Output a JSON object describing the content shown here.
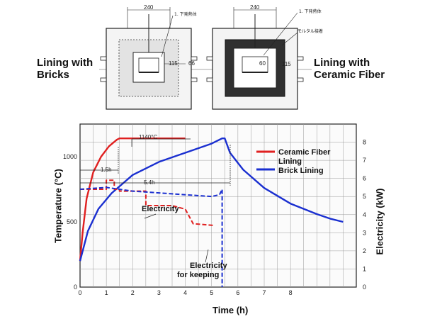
{
  "diagrams": {
    "left_label": "Lining with Bricks",
    "right_label": "Lining with Ceramic Fiber",
    "width_dim": "240",
    "left_callout": "1. 下発熱体",
    "right_callout_1": "1. 下発熱体",
    "right_callout_2": "モルタル接着",
    "left_dim_a": "115",
    "left_dim_b": "66",
    "right_dim_a": "60",
    "right_dim_b": "115"
  },
  "chart_data": {
    "type": "line",
    "xlabel": "Time (h)",
    "ylabel_left": "Temperature (°C)",
    "ylabel_right": "Electricity (kW)",
    "xlim": [
      0,
      10.5
    ],
    "ylim_left": [
      0,
      1250
    ],
    "ylim_right": [
      0,
      9
    ],
    "x_ticks": [
      "0",
      "1",
      "2",
      "3",
      "4",
      "5",
      "6",
      "7",
      "8"
    ],
    "y_ticks_left": [
      "0",
      "500",
      "1000"
    ],
    "y_ticks_right": [
      "0",
      "1",
      "2",
      "3",
      "4",
      "5",
      "6",
      "7",
      "8"
    ],
    "grid": true,
    "legend_position": "top-right",
    "legend": [
      "Ceramic Fiber Lining",
      "Brick Lining"
    ],
    "colors": {
      "ceramic": "#e02020",
      "brick": "#1a2fd0",
      "frame": "#222222"
    },
    "annotations": {
      "peak": "1140°C",
      "t_ceramic": "1.5h",
      "t_brick": "5.4h",
      "electricity": "Electricity",
      "electricity_keeping": "Electricity for keeping"
    },
    "series": [
      {
        "name": "Ceramic Fiber Lining",
        "axis": "temperature",
        "points": [
          [
            0,
            200
          ],
          [
            0.1,
            420
          ],
          [
            0.25,
            680
          ],
          [
            0.5,
            880
          ],
          [
            0.8,
            1000
          ],
          [
            1.1,
            1080
          ],
          [
            1.4,
            1130
          ],
          [
            1.5,
            1140
          ],
          [
            4.0,
            1140
          ]
        ]
      },
      {
        "name": "Brick Lining",
        "axis": "temperature",
        "points": [
          [
            0,
            200
          ],
          [
            0.3,
            430
          ],
          [
            0.7,
            600
          ],
          [
            1.2,
            720
          ],
          [
            2.0,
            860
          ],
          [
            3.0,
            960
          ],
          [
            4.0,
            1030
          ],
          [
            5.0,
            1100
          ],
          [
            5.4,
            1140
          ],
          [
            5.5,
            1140
          ],
          [
            5.7,
            1030
          ],
          [
            6.2,
            900
          ],
          [
            7.0,
            760
          ],
          [
            8.0,
            640
          ],
          [
            9.0,
            560
          ],
          [
            9.5,
            525
          ],
          [
            10.0,
            500
          ]
        ]
      },
      {
        "name": "Ceramic Fiber Lining",
        "axis": "electricity",
        "points": [
          [
            0,
            5.4
          ],
          [
            1.0,
            5.4
          ],
          [
            1.0,
            5.9
          ],
          [
            1.3,
            5.9
          ],
          [
            1.3,
            5.4
          ],
          [
            1.5,
            5.4
          ],
          [
            1.5,
            5.3
          ],
          [
            2.5,
            5.3
          ],
          [
            2.5,
            4.5
          ],
          [
            3.5,
            4.5
          ],
          [
            4.0,
            4.3
          ],
          [
            4.3,
            3.5
          ],
          [
            5.1,
            3.4
          ]
        ]
      },
      {
        "name": "Brick Lining",
        "axis": "electricity",
        "points": [
          [
            0,
            5.4
          ],
          [
            1.0,
            5.5
          ],
          [
            2.0,
            5.3
          ],
          [
            3.0,
            5.2
          ],
          [
            4.0,
            5.1
          ],
          [
            5.0,
            5.0
          ],
          [
            5.3,
            5.1
          ],
          [
            5.4,
            5.4
          ],
          [
            5.4,
            0
          ]
        ]
      }
    ]
  }
}
